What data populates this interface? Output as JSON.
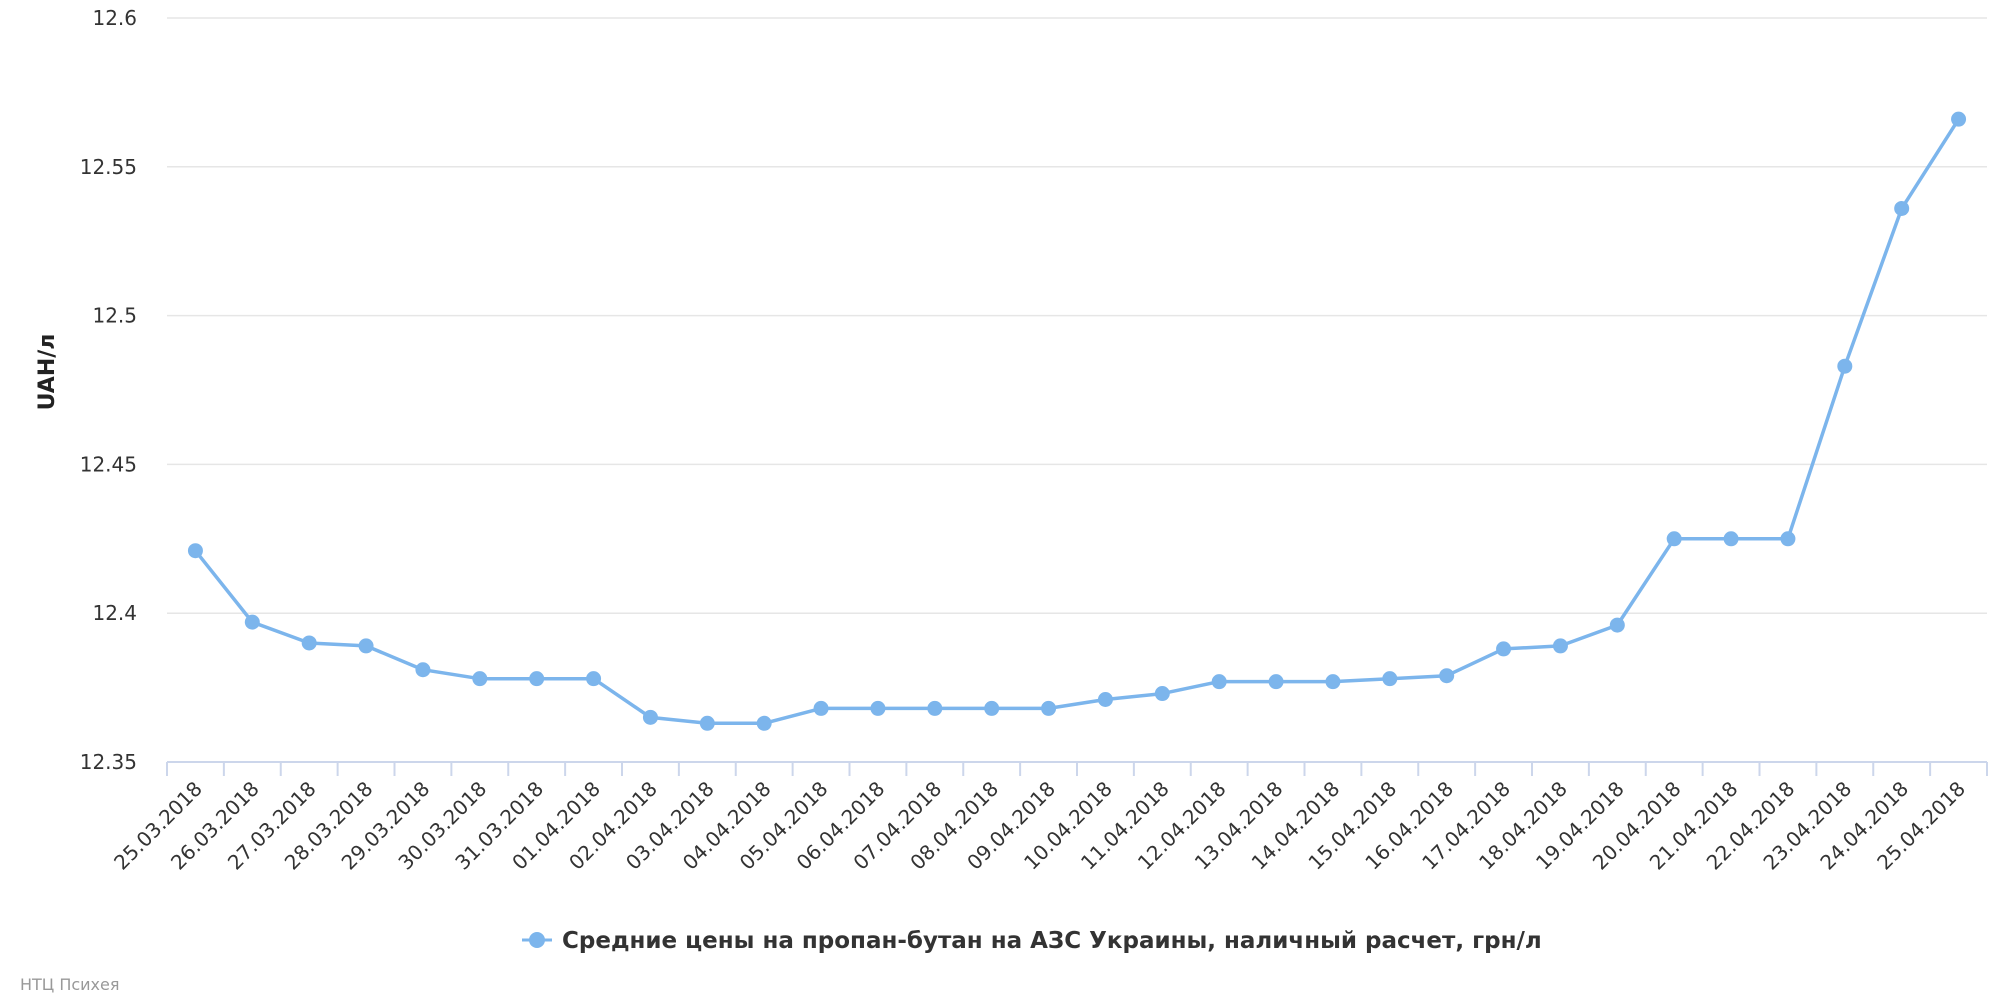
{
  "chart_data": {
    "type": "line",
    "title": "",
    "xlabel": "",
    "ylabel": "UAH/л",
    "ylim": [
      12.35,
      12.6
    ],
    "yticks": [
      "12.35",
      "12.4",
      "12.45",
      "12.5",
      "12.55",
      "12.6"
    ],
    "grid": true,
    "legend_position": "bottom-center",
    "categories": [
      "25.03.2018",
      "26.03.2018",
      "27.03.2018",
      "28.03.2018",
      "29.03.2018",
      "30.03.2018",
      "31.03.2018",
      "01.04.2018",
      "02.04.2018",
      "03.04.2018",
      "04.04.2018",
      "05.04.2018",
      "06.04.2018",
      "07.04.2018",
      "08.04.2018",
      "09.04.2018",
      "10.04.2018",
      "11.04.2018",
      "12.04.2018",
      "13.04.2018",
      "14.04.2018",
      "15.04.2018",
      "16.04.2018",
      "17.04.2018",
      "18.04.2018",
      "19.04.2018",
      "20.04.2018",
      "21.04.2018",
      "22.04.2018",
      "23.04.2018",
      "24.04.2018",
      "25.04.2018"
    ],
    "series": [
      {
        "name": "Средние цены на пропан-бутан на АЗС Украины, наличный расчет, грн/л",
        "color": "#7cb5ec",
        "values": [
          12.421,
          12.397,
          12.39,
          12.389,
          12.381,
          12.378,
          12.378,
          12.378,
          12.365,
          12.363,
          12.363,
          12.368,
          12.368,
          12.368,
          12.368,
          12.368,
          12.371,
          12.373,
          12.377,
          12.377,
          12.377,
          12.378,
          12.379,
          12.388,
          12.389,
          12.396,
          12.425,
          12.425,
          12.425,
          12.483,
          12.536,
          12.566
        ]
      }
    ]
  },
  "credit": "НТЦ Психея",
  "colors": {
    "gridline": "#e6e6e6",
    "axis": "#ccd6eb",
    "series": "#7cb5ec"
  }
}
